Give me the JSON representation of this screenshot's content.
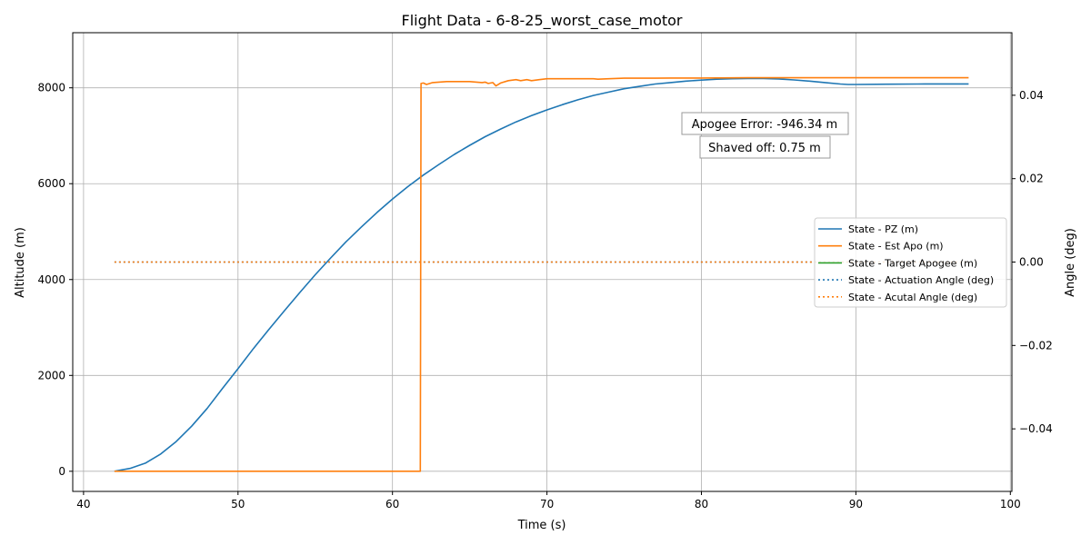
{
  "chart_data": {
    "type": "line",
    "title": "Flight Data - 6-8-25_worst_case_motor",
    "xlabel": "Time (s)",
    "ylabel": "Altitude (m)",
    "y2label": "Angle (deg)",
    "xlim": [
      39.3,
      100.1
    ],
    "ylim": [
      -420,
      9150
    ],
    "y2lim": [
      -0.055,
      0.055
    ],
    "xticks": [
      40,
      50,
      60,
      70,
      80,
      90,
      100
    ],
    "yticks": [
      0,
      2000,
      4000,
      6000,
      8000
    ],
    "y2ticks": [
      -0.04,
      -0.02,
      0.0,
      0.02,
      0.04
    ],
    "y2tick_labels": [
      "−0.04",
      "−0.02",
      "0.00",
      "0.02",
      "0.04"
    ],
    "grid": true,
    "legend_position": "right",
    "series": [
      {
        "name": "State - PZ (m)",
        "axis": "left",
        "style": "solid",
        "color": "#1f77b4",
        "points": [
          [
            42,
            0
          ],
          [
            43,
            60
          ],
          [
            44,
            170
          ],
          [
            45,
            360
          ],
          [
            46,
            620
          ],
          [
            47,
            940
          ],
          [
            48,
            1310
          ],
          [
            49,
            1730
          ],
          [
            50,
            2140
          ],
          [
            51,
            2560
          ],
          [
            52,
            2960
          ],
          [
            53,
            3350
          ],
          [
            54,
            3730
          ],
          [
            55,
            4100
          ],
          [
            56,
            4450
          ],
          [
            57,
            4790
          ],
          [
            58,
            5100
          ],
          [
            59,
            5400
          ],
          [
            60,
            5680
          ],
          [
            61,
            5940
          ],
          [
            62,
            6180
          ],
          [
            63,
            6400
          ],
          [
            64,
            6610
          ],
          [
            65,
            6800
          ],
          [
            66,
            6980
          ],
          [
            67,
            7140
          ],
          [
            68,
            7290
          ],
          [
            69,
            7420
          ],
          [
            70,
            7540
          ],
          [
            71,
            7650
          ],
          [
            72,
            7750
          ],
          [
            73,
            7840
          ],
          [
            74,
            7910
          ],
          [
            75,
            7980
          ],
          [
            76,
            8030
          ],
          [
            77,
            8080
          ],
          [
            78,
            8110
          ],
          [
            79,
            8140
          ],
          [
            80,
            8160
          ],
          [
            81,
            8180
          ],
          [
            82,
            8190
          ],
          [
            83,
            8195
          ],
          [
            84,
            8195
          ],
          [
            85,
            8185
          ],
          [
            86,
            8165
          ],
          [
            87,
            8140
          ],
          [
            88,
            8110
          ],
          [
            89,
            8080
          ],
          [
            89.5,
            8070
          ],
          [
            90,
            8070
          ],
          [
            92,
            8075
          ],
          [
            94,
            8080
          ],
          [
            96,
            8082
          ],
          [
            97.3,
            8082
          ]
        ]
      },
      {
        "name": "State - Est Apo (m)",
        "axis": "left",
        "style": "solid",
        "color": "#ff7f0e",
        "points": [
          [
            42,
            0
          ],
          [
            61.8,
            0
          ],
          [
            61.85,
            8090
          ],
          [
            62.0,
            8100
          ],
          [
            62.2,
            8070
          ],
          [
            62.6,
            8110
          ],
          [
            63.5,
            8130
          ],
          [
            65,
            8130
          ],
          [
            65.8,
            8110
          ],
          [
            66.0,
            8120
          ],
          [
            66.2,
            8090
          ],
          [
            66.5,
            8110
          ],
          [
            66.7,
            8040
          ],
          [
            67.0,
            8100
          ],
          [
            67.5,
            8150
          ],
          [
            68.0,
            8170
          ],
          [
            68.3,
            8150
          ],
          [
            68.7,
            8170
          ],
          [
            69.0,
            8150
          ],
          [
            69.5,
            8170
          ],
          [
            70,
            8190
          ],
          [
            71,
            8190
          ],
          [
            72,
            8190
          ],
          [
            73,
            8190
          ],
          [
            73.3,
            8180
          ],
          [
            74,
            8190
          ],
          [
            75,
            8200
          ],
          [
            76,
            8200
          ],
          [
            77,
            8200
          ],
          [
            78,
            8205
          ],
          [
            80,
            8205
          ],
          [
            83,
            8210
          ],
          [
            85,
            8210
          ],
          [
            90,
            8210
          ],
          [
            95,
            8210
          ],
          [
            97.3,
            8210
          ]
        ]
      },
      {
        "name": "State - Target Apogee (m)",
        "axis": "left",
        "style": "solid",
        "color": "#2ca02c",
        "points": []
      },
      {
        "name": "State - Actuation Angle (deg)",
        "axis": "right",
        "style": "dotted",
        "color": "#1f77b4",
        "points": [
          [
            42,
            0
          ],
          [
            97.3,
            0
          ]
        ]
      },
      {
        "name": "State - Acutal Angle (deg)",
        "axis": "right",
        "style": "dotted",
        "color": "#ff7f0e",
        "points": [
          [
            42,
            0
          ],
          [
            97.3,
            0
          ]
        ]
      }
    ],
    "annotations": [
      {
        "text": "Apogee Error: -946.34 m"
      },
      {
        "text": "Shaved off: 0.75 m"
      }
    ]
  }
}
